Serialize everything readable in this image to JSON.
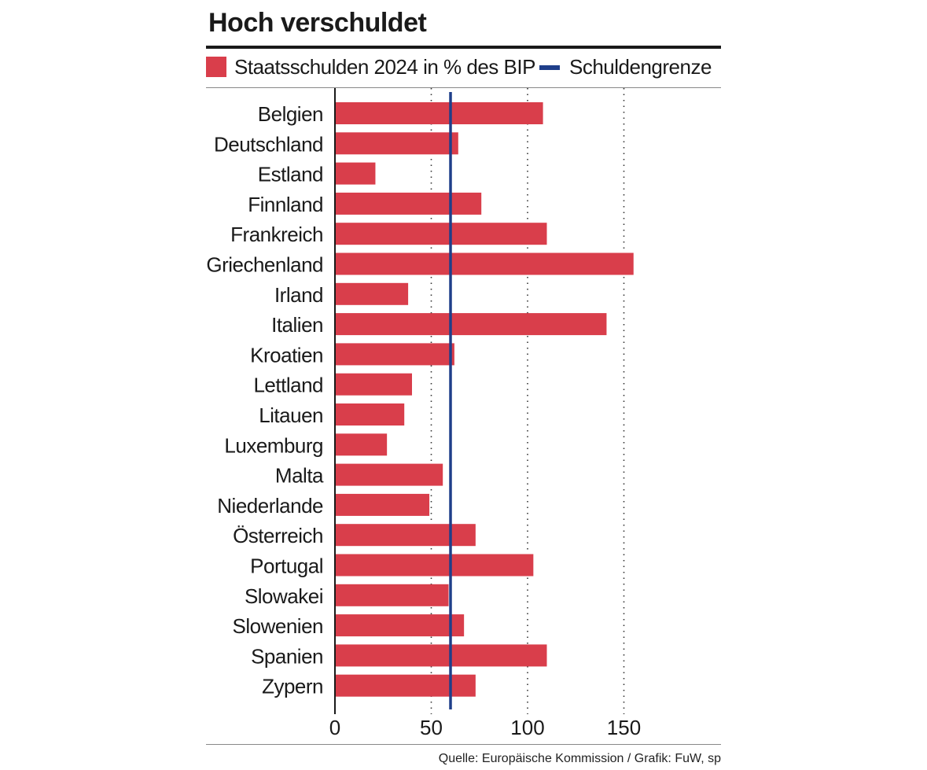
{
  "title": "Hoch verschuldet",
  "legend": {
    "bars_label": "Staatsschulden 2024  in % des BIP",
    "line_label": "Schuldengrenze"
  },
  "colors": {
    "bar": "#d93e4b",
    "limit": "#1f3f8a",
    "axis": "#1a1a1a",
    "grid": "#333333"
  },
  "source": "Quelle: Europäische Kommission / Grafik: FuW, sp",
  "chart_data": {
    "type": "bar",
    "orientation": "horizontal",
    "title": "Hoch verschuldet",
    "xlabel": "",
    "ylabel": "",
    "xlim": [
      0,
      200
    ],
    "xticks": [
      0,
      50,
      100,
      150
    ],
    "grid": "vertical dotted at 50, 100, 150",
    "reference_line": {
      "label": "Schuldengrenze",
      "value": 60
    },
    "series": [
      {
        "name": "Staatsschulden 2024  in % des BIP",
        "values": [
          108,
          64,
          21,
          76,
          110,
          155,
          38,
          141,
          62,
          40,
          36,
          27,
          56,
          49,
          73,
          103,
          59,
          67,
          110,
          73
        ]
      }
    ],
    "categories": [
      "Belgien",
      "Deutschland",
      "Estland",
      "Finnland",
      "Frankreich",
      "Griechenland",
      "Irland",
      "Italien",
      "Kroatien",
      "Lettland",
      "Litauen",
      "Luxemburg",
      "Malta",
      "Niederlande",
      "Österreich",
      "Portugal",
      "Slowakei",
      "Slowenien",
      "Spanien",
      "Zypern"
    ]
  }
}
